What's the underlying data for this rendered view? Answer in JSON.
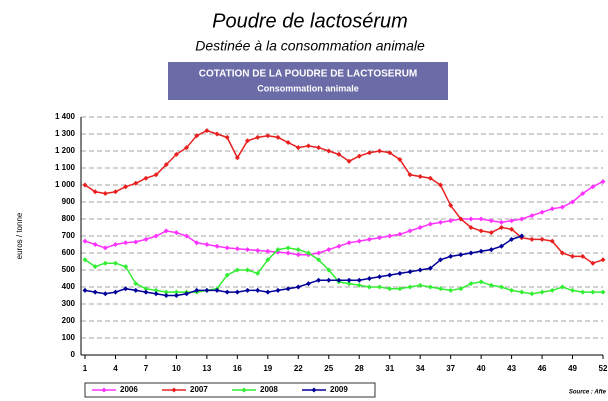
{
  "chart_data": {
    "type": "line",
    "title": "Poudre de lactosérum",
    "subtitle": "Destinée à la consommation animale",
    "box_title": "COTATION DE LA POUDRE DE LACTOSERUM",
    "box_subtitle": "Consommation animale",
    "y_label": "euros / tonne",
    "source": "Source : Afte",
    "x": [
      1,
      2,
      3,
      4,
      5,
      6,
      7,
      8,
      9,
      10,
      11,
      12,
      13,
      14,
      15,
      16,
      17,
      18,
      19,
      20,
      21,
      22,
      23,
      24,
      25,
      26,
      27,
      28,
      29,
      30,
      31,
      32,
      33,
      34,
      35,
      36,
      37,
      38,
      39,
      40,
      41,
      42,
      43,
      44,
      45,
      46,
      47,
      48,
      49,
      50,
      51,
      52
    ],
    "xlim": [
      1,
      52
    ],
    "xticks": [
      1,
      4,
      7,
      10,
      13,
      16,
      19,
      22,
      25,
      28,
      31,
      34,
      37,
      40,
      43,
      46,
      49,
      52
    ],
    "ylim": [
      0,
      1400
    ],
    "yticks": [
      0,
      100,
      200,
      300,
      400,
      500,
      600,
      700,
      800,
      900,
      {
        "value": 1000,
        "label": "1 000"
      },
      {
        "value": 1100,
        "label": "1 100"
      },
      {
        "value": 1200,
        "label": "1 200"
      },
      {
        "value": 1300,
        "label": "1 300"
      },
      {
        "value": 1400,
        "label": "1 400"
      }
    ],
    "grid": true,
    "legend": "bottom",
    "series": [
      {
        "name": "2006",
        "color": "#ff33ff",
        "values": [
          670,
          650,
          630,
          650,
          660,
          665,
          680,
          700,
          730,
          720,
          700,
          660,
          650,
          640,
          630,
          625,
          620,
          615,
          610,
          605,
          600,
          590,
          590,
          600,
          620,
          640,
          660,
          670,
          680,
          690,
          700,
          710,
          730,
          750,
          770,
          780,
          790,
          800,
          800,
          800,
          790,
          780,
          790,
          800,
          820,
          840,
          860,
          870,
          900,
          950,
          990,
          1020
        ]
      },
      {
        "name": "2007",
        "color": "#e82020",
        "values": [
          1000,
          960,
          950,
          960,
          990,
          1010,
          1040,
          1060,
          1120,
          1180,
          1220,
          1290,
          1320,
          1300,
          1280,
          1160,
          1260,
          1280,
          1290,
          1280,
          1250,
          1220,
          1230,
          1220,
          1200,
          1180,
          1140,
          1170,
          1190,
          1200,
          1190,
          1150,
          1060,
          1050,
          1040,
          1000,
          880,
          800,
          750,
          730,
          720,
          750,
          740,
          690,
          680,
          680,
          670,
          600,
          580,
          580,
          540,
          560
        ]
      },
      {
        "name": "2008",
        "color": "#33ee33",
        "values": [
          560,
          520,
          540,
          540,
          520,
          420,
          390,
          380,
          370,
          370,
          370,
          370,
          380,
          390,
          470,
          500,
          500,
          480,
          560,
          620,
          630,
          620,
          600,
          560,
          500,
          430,
          420,
          410,
          400,
          400,
          390,
          390,
          400,
          410,
          400,
          390,
          380,
          390,
          420,
          430,
          410,
          400,
          380,
          370,
          360,
          370,
          380,
          400,
          380,
          370,
          370,
          370
        ]
      },
      {
        "name": "2009",
        "color": "#000099",
        "values": [
          380,
          370,
          360,
          370,
          390,
          380,
          370,
          360,
          350,
          350,
          360,
          380,
          380,
          380,
          370,
          370,
          380,
          380,
          370,
          380,
          390,
          400,
          420,
          440,
          440,
          440,
          440,
          440,
          450,
          460,
          470,
          480,
          490,
          500,
          510,
          560,
          580,
          590,
          600,
          610,
          620,
          640,
          680,
          700,
          null,
          null,
          null,
          null,
          null,
          null,
          null,
          null
        ]
      }
    ]
  }
}
